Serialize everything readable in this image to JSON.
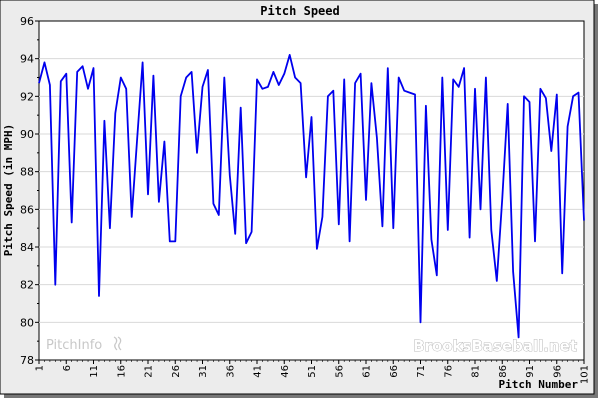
{
  "chart_data": {
    "type": "line",
    "title": "Pitch Speed",
    "xlabel": "Pitch Number",
    "ylabel": "Pitch Speed (in MPH)",
    "xlim": [
      1,
      101
    ],
    "ylim": [
      78,
      96
    ],
    "y_ticks": [
      78,
      80,
      82,
      84,
      86,
      88,
      90,
      92,
      94,
      96
    ],
    "x_ticks": [
      1,
      6,
      11,
      16,
      21,
      26,
      31,
      36,
      41,
      46,
      51,
      56,
      61,
      66,
      71,
      76,
      81,
      86,
      91,
      96,
      101
    ],
    "grid": true,
    "series": [
      {
        "color": "#0000ee",
        "x": [
          1,
          2,
          3,
          4,
          5,
          6,
          7,
          8,
          9,
          10,
          11,
          12,
          13,
          14,
          15,
          16,
          17,
          18,
          19,
          20,
          21,
          22,
          23,
          24,
          25,
          26,
          27,
          28,
          29,
          30,
          31,
          32,
          33,
          34,
          35,
          36,
          37,
          38,
          39,
          40,
          41,
          42,
          43,
          44,
          45,
          46,
          47,
          48,
          49,
          50,
          51,
          52,
          53,
          54,
          55,
          56,
          57,
          58,
          59,
          60,
          61,
          62,
          63,
          64,
          65,
          66,
          67,
          68,
          69,
          70,
          71,
          72,
          73,
          74,
          75,
          76,
          77,
          78,
          79,
          80,
          81,
          82,
          83,
          84,
          85,
          86,
          87,
          88,
          89,
          90,
          91,
          92,
          93,
          94,
          95,
          96,
          97,
          98,
          99,
          100,
          101
        ],
        "values": [
          92.7,
          93.8,
          92.6,
          82.0,
          92.8,
          93.2,
          85.3,
          93.3,
          93.6,
          92.4,
          93.5,
          81.4,
          90.7,
          85.0,
          91.1,
          93.0,
          92.4,
          85.6,
          89.7,
          93.8,
          86.8,
          93.1,
          86.4,
          89.6,
          84.3,
          84.3,
          92.0,
          93.0,
          93.3,
          89.0,
          92.5,
          93.4,
          86.3,
          85.7,
          93.0,
          87.8,
          84.7,
          91.4,
          84.2,
          84.8,
          92.9,
          92.4,
          92.5,
          93.3,
          92.6,
          93.2,
          94.2,
          93.0,
          92.7,
          87.7,
          90.9,
          83.9,
          85.6,
          92.0,
          92.3,
          85.2,
          92.9,
          84.3,
          92.7,
          93.2,
          86.5,
          92.7,
          89.8,
          85.1,
          93.5,
          85.0,
          93.0,
          92.3,
          92.2,
          92.1,
          80.0,
          91.5,
          84.4,
          82.5,
          93.0,
          84.9,
          92.9,
          92.5,
          93.5,
          84.5,
          92.4,
          86.0,
          93.0,
          84.9,
          82.2,
          86.6,
          91.6,
          82.7,
          79.2,
          92.0,
          91.7,
          84.3,
          92.4,
          91.9,
          89.1,
          92.1,
          82.6,
          90.4,
          92.0,
          92.2,
          85.4
        ]
      }
    ]
  },
  "watermarks": {
    "left": "PitchInfo",
    "right": "BrooksBaseball.net"
  }
}
